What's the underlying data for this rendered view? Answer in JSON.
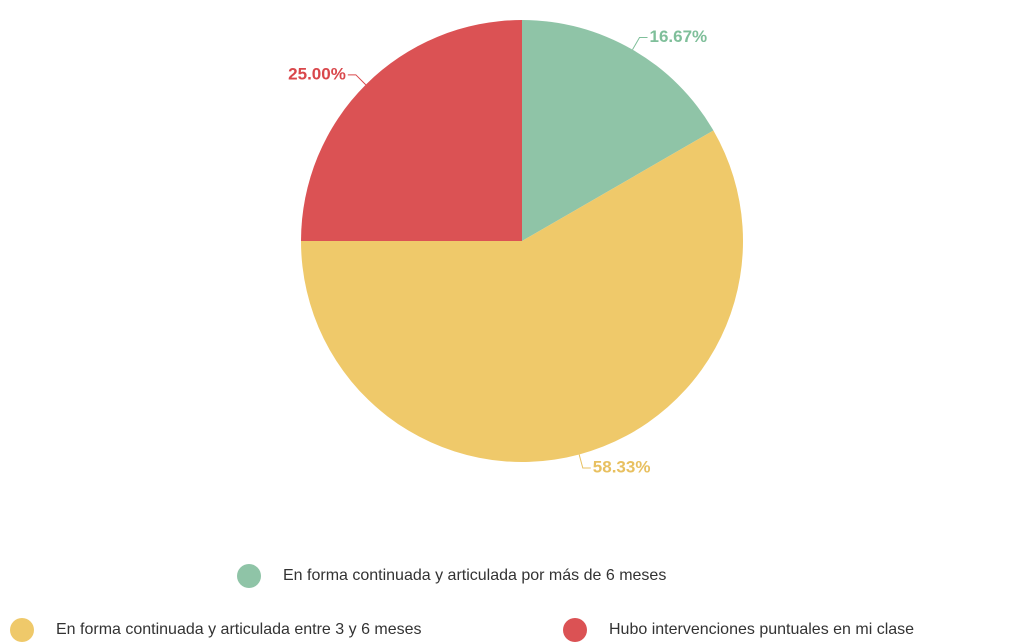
{
  "chart_data": {
    "type": "pie",
    "categories": [
      "En forma continuada y articulada por más de 6 meses",
      "En forma continuada y articulada entre 3 y 6 meses",
      "Hubo intervenciones puntuales en mi clase"
    ],
    "values": [
      16.67,
      58.33,
      25.0
    ],
    "value_labels": [
      "16.67%",
      "58.33%",
      "25.00%"
    ],
    "colors": [
      "#8fc4a7",
      "#efc96a",
      "#db5254"
    ],
    "label_colors": [
      "#7fbf9a",
      "#e8c060",
      "#d9474b"
    ]
  }
}
